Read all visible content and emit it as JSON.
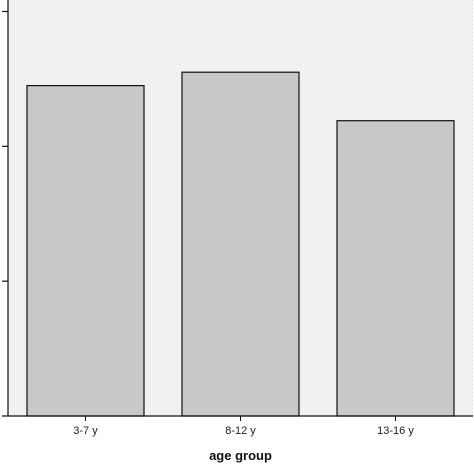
{
  "chart_data": {
    "type": "bar",
    "categories": [
      "3-7 y",
      "8-12 y",
      "13-16 y"
    ],
    "values": [
      2.45,
      2.55,
      2.19
    ],
    "xlabel": "age group",
    "ylabel": "",
    "ylim": [
      0,
      3.1
    ],
    "yticks": [
      0,
      1,
      2,
      3
    ],
    "grid": false,
    "colors": {
      "plot_background": "#f2f2f2",
      "bar_fill": "#c8c8c8",
      "bar_stroke": "#111111",
      "axis": "#111111"
    }
  }
}
